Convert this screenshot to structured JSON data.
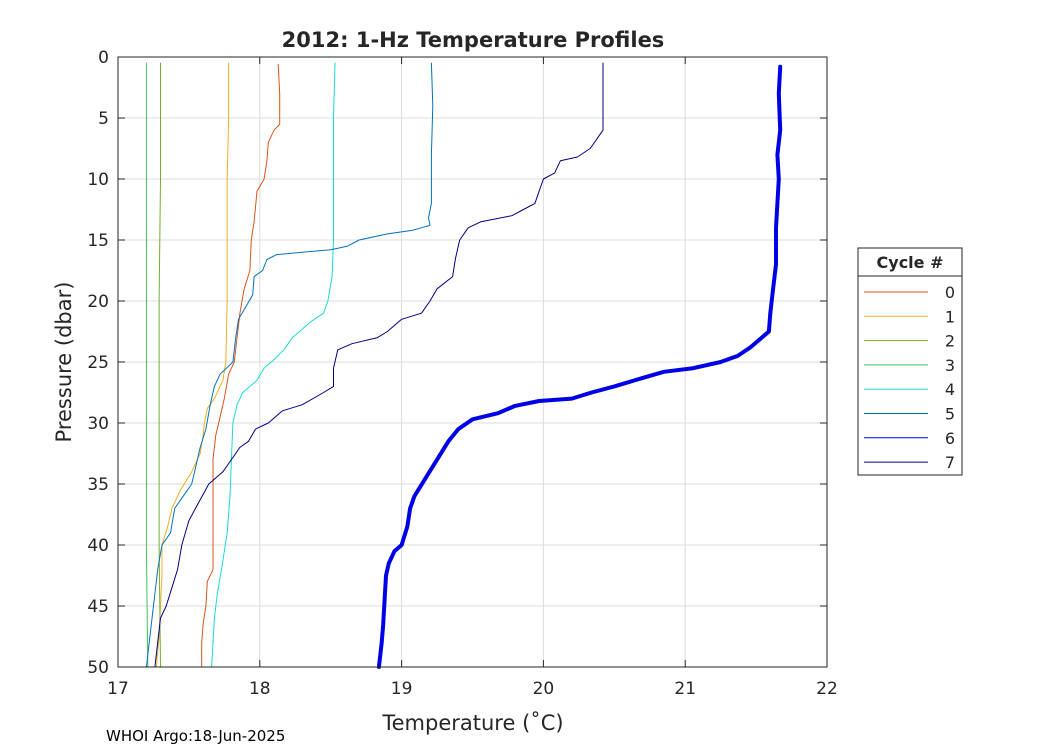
{
  "chart_data": {
    "type": "line",
    "title": "2012: 1-Hz Temperature Profiles",
    "xlabel": "Temperature (˚C)",
    "ylabel": "Pressure (dbar)",
    "xlim": [
      17,
      22
    ],
    "ylim": [
      0,
      50
    ],
    "y_reversed": true,
    "grid": true,
    "xticks": [
      17,
      18,
      19,
      20,
      21,
      22
    ],
    "yticks": [
      0,
      5,
      10,
      15,
      20,
      25,
      30,
      35,
      40,
      45,
      50
    ],
    "legend": {
      "title": "Cycle #",
      "placement": "outside-right"
    },
    "series": [
      {
        "name": "0",
        "color": "#d95319",
        "width": 1,
        "points": [
          [
            18.13,
            0.6
          ],
          [
            18.14,
            3
          ],
          [
            18.14,
            5.5
          ],
          [
            18.1,
            6
          ],
          [
            18.06,
            7
          ],
          [
            18.05,
            8.5
          ],
          [
            18.03,
            10
          ],
          [
            17.98,
            11
          ],
          [
            17.96,
            13.5
          ],
          [
            17.94,
            15
          ],
          [
            17.93,
            17.5
          ],
          [
            17.89,
            19
          ],
          [
            17.86,
            21
          ],
          [
            17.84,
            23
          ],
          [
            17.82,
            25
          ],
          [
            17.78,
            26
          ],
          [
            17.75,
            28
          ],
          [
            17.72,
            29.5
          ],
          [
            17.69,
            31
          ],
          [
            17.67,
            33
          ],
          [
            17.67,
            38
          ],
          [
            17.67,
            42
          ],
          [
            17.63,
            43
          ],
          [
            17.62,
            45
          ],
          [
            17.6,
            46.5
          ],
          [
            17.59,
            48
          ],
          [
            17.59,
            50
          ]
        ]
      },
      {
        "name": "1",
        "color": "#edb120",
        "width": 1,
        "points": [
          [
            17.78,
            0.5
          ],
          [
            17.78,
            5
          ],
          [
            17.77,
            10
          ],
          [
            17.77,
            15
          ],
          [
            17.77,
            20
          ],
          [
            17.76,
            25
          ],
          [
            17.74,
            26.5
          ],
          [
            17.68,
            28
          ],
          [
            17.63,
            28.8
          ],
          [
            17.61,
            30
          ],
          [
            17.6,
            31
          ],
          [
            17.58,
            32.5
          ],
          [
            17.52,
            34
          ],
          [
            17.44,
            35.5
          ],
          [
            17.38,
            37
          ],
          [
            17.35,
            38.5
          ],
          [
            17.31,
            40
          ],
          [
            17.31,
            42.5
          ],
          [
            17.3,
            45
          ],
          [
            17.29,
            47.5
          ],
          [
            17.27,
            50
          ]
        ]
      },
      {
        "name": "2",
        "color": "#77ac30",
        "width": 1,
        "points": [
          [
            17.3,
            0.5
          ],
          [
            17.3,
            10
          ],
          [
            17.29,
            20
          ],
          [
            17.29,
            30
          ],
          [
            17.29,
            40
          ],
          [
            17.3,
            50
          ]
        ]
      },
      {
        "name": "3",
        "color": "#3cc35f",
        "width": 1,
        "points": [
          [
            17.2,
            0.5
          ],
          [
            17.2,
            10
          ],
          [
            17.2,
            20
          ],
          [
            17.2,
            30
          ],
          [
            17.2,
            40
          ],
          [
            17.21,
            50
          ]
        ]
      },
      {
        "name": "4",
        "color": "#1ad9d9",
        "width": 1,
        "points": [
          [
            18.53,
            0.5
          ],
          [
            18.52,
            5
          ],
          [
            18.52,
            10
          ],
          [
            18.52,
            15
          ],
          [
            18.51,
            18
          ],
          [
            18.48,
            20
          ],
          [
            18.45,
            21
          ],
          [
            18.36,
            21.7
          ],
          [
            18.28,
            22.5
          ],
          [
            18.23,
            23
          ],
          [
            18.17,
            24
          ],
          [
            18.1,
            24.8
          ],
          [
            18.03,
            25.5
          ],
          [
            17.98,
            26.5
          ],
          [
            17.88,
            27.5
          ],
          [
            17.84,
            28.5
          ],
          [
            17.81,
            30
          ],
          [
            17.8,
            33
          ],
          [
            17.79,
            36
          ],
          [
            17.77,
            39
          ],
          [
            17.73,
            42
          ],
          [
            17.7,
            44
          ],
          [
            17.68,
            46
          ],
          [
            17.67,
            48
          ],
          [
            17.66,
            50
          ]
        ]
      },
      {
        "name": "5",
        "color": "#0072bd",
        "width": 1,
        "points": [
          [
            19.21,
            0.5
          ],
          [
            19.22,
            4
          ],
          [
            19.21,
            8
          ],
          [
            19.21,
            12
          ],
          [
            19.19,
            13.2
          ],
          [
            19.2,
            13.8
          ],
          [
            19.08,
            14.2
          ],
          [
            18.9,
            14.5
          ],
          [
            18.7,
            15
          ],
          [
            18.62,
            15.5
          ],
          [
            18.5,
            15.8
          ],
          [
            18.3,
            16
          ],
          [
            18.12,
            16.2
          ],
          [
            18.05,
            16.6
          ],
          [
            18.02,
            17.5
          ],
          [
            17.96,
            18
          ],
          [
            17.95,
            19.5
          ],
          [
            17.9,
            20.5
          ],
          [
            17.85,
            21.5
          ],
          [
            17.83,
            23
          ],
          [
            17.81,
            25
          ],
          [
            17.72,
            26
          ],
          [
            17.68,
            27
          ],
          [
            17.65,
            28.5
          ],
          [
            17.62,
            30.5
          ],
          [
            17.58,
            32
          ],
          [
            17.55,
            33.5
          ],
          [
            17.52,
            35
          ],
          [
            17.46,
            36
          ],
          [
            17.4,
            37
          ],
          [
            17.37,
            39
          ],
          [
            17.31,
            40
          ],
          [
            17.28,
            42
          ],
          [
            17.26,
            44
          ],
          [
            17.23,
            47
          ],
          [
            17.21,
            49
          ],
          [
            17.2,
            50
          ]
        ]
      },
      {
        "name": "6",
        "color": "#0000e6",
        "width": 4,
        "points": [
          [
            21.67,
            0.8
          ],
          [
            21.66,
            3
          ],
          [
            21.67,
            6
          ],
          [
            21.65,
            8
          ],
          [
            21.66,
            10
          ],
          [
            21.65,
            12
          ],
          [
            21.64,
            14
          ],
          [
            21.64,
            17
          ],
          [
            21.62,
            19
          ],
          [
            21.6,
            21
          ],
          [
            21.59,
            22.5
          ],
          [
            21.54,
            23
          ],
          [
            21.46,
            23.8
          ],
          [
            21.37,
            24.5
          ],
          [
            21.25,
            25
          ],
          [
            21.06,
            25.5
          ],
          [
            20.85,
            25.8
          ],
          [
            20.7,
            26.3
          ],
          [
            20.5,
            27
          ],
          [
            20.34,
            27.5
          ],
          [
            20.2,
            28
          ],
          [
            19.97,
            28.2
          ],
          [
            19.8,
            28.6
          ],
          [
            19.68,
            29.2
          ],
          [
            19.5,
            29.7
          ],
          [
            19.4,
            30.5
          ],
          [
            19.33,
            31.5
          ],
          [
            19.25,
            33
          ],
          [
            19.17,
            34.5
          ],
          [
            19.09,
            36
          ],
          [
            19.06,
            37
          ],
          [
            19.04,
            38.5
          ],
          [
            19.0,
            40
          ],
          [
            18.95,
            40.5
          ],
          [
            18.91,
            41.5
          ],
          [
            18.89,
            42.5
          ],
          [
            18.88,
            44.5
          ],
          [
            18.87,
            46.5
          ],
          [
            18.86,
            48
          ],
          [
            18.84,
            50
          ]
        ]
      },
      {
        "name": "7",
        "color": "#000080",
        "width": 1,
        "points": [
          [
            20.42,
            0.5
          ],
          [
            20.42,
            3
          ],
          [
            20.42,
            6
          ],
          [
            20.39,
            6.5
          ],
          [
            20.33,
            7.5
          ],
          [
            20.24,
            8.2
          ],
          [
            20.12,
            8.5
          ],
          [
            20.08,
            9.5
          ],
          [
            20.0,
            10
          ],
          [
            19.97,
            11
          ],
          [
            19.94,
            12
          ],
          [
            19.86,
            12.5
          ],
          [
            19.78,
            13
          ],
          [
            19.56,
            13.5
          ],
          [
            19.47,
            14
          ],
          [
            19.41,
            15
          ],
          [
            19.38,
            16.5
          ],
          [
            19.36,
            18
          ],
          [
            19.25,
            19
          ],
          [
            19.2,
            20
          ],
          [
            19.14,
            21
          ],
          [
            19.0,
            21.5
          ],
          [
            18.9,
            22.5
          ],
          [
            18.83,
            23
          ],
          [
            18.65,
            23.5
          ],
          [
            18.55,
            24
          ],
          [
            18.52,
            25.5
          ],
          [
            18.52,
            27
          ],
          [
            18.45,
            27.5
          ],
          [
            18.3,
            28.5
          ],
          [
            18.16,
            29
          ],
          [
            18.06,
            30
          ],
          [
            17.97,
            30.5
          ],
          [
            17.92,
            31.5
          ],
          [
            17.86,
            32
          ],
          [
            17.8,
            33
          ],
          [
            17.74,
            34
          ],
          [
            17.64,
            35
          ],
          [
            17.57,
            36.5
          ],
          [
            17.5,
            38
          ],
          [
            17.45,
            40
          ],
          [
            17.42,
            42
          ],
          [
            17.38,
            43.5
          ],
          [
            17.34,
            45
          ],
          [
            17.3,
            46
          ],
          [
            17.28,
            48
          ],
          [
            17.26,
            50
          ]
        ]
      }
    ]
  },
  "footer": {
    "credit": "WHOI Argo:18-Jun-2025"
  }
}
